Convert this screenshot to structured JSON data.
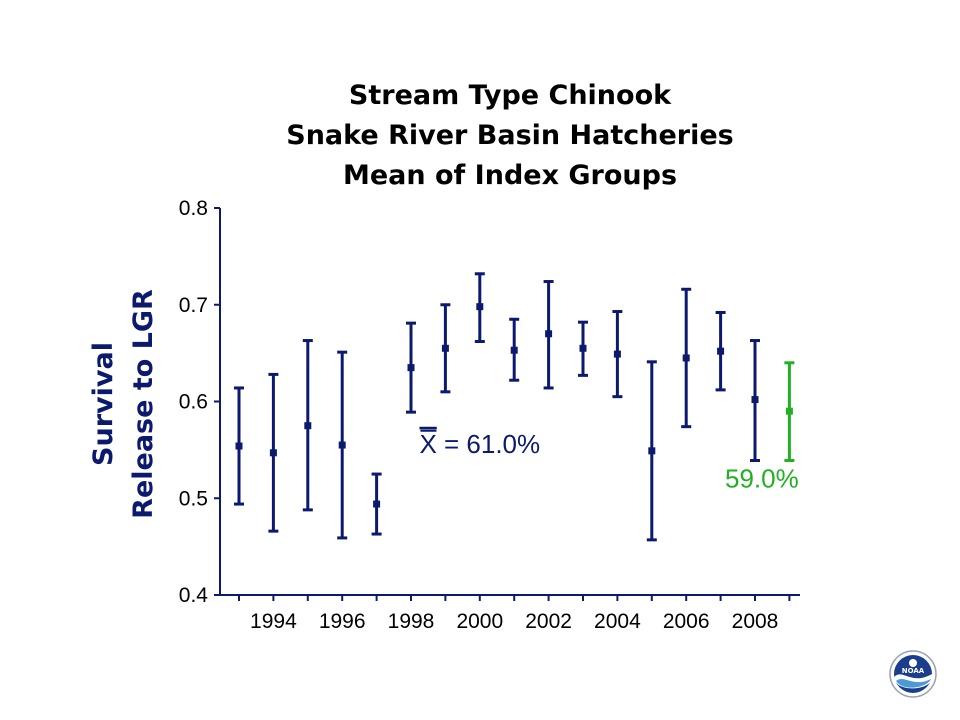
{
  "chart_data": {
    "type": "scatter",
    "title": [
      "Stream Type Chinook",
      "Snake River Basin Hatcheries",
      "Mean of Index Groups"
    ],
    "ylabel": [
      "Survival",
      "Release to LGR"
    ],
    "xlabel": "",
    "xlim": [
      1992.5,
      2009.8
    ],
    "ylim": [
      0.4,
      0.8
    ],
    "y_ticks": [
      0.4,
      0.5,
      0.6,
      0.7,
      0.8
    ],
    "y_tick_labels": [
      "0.4",
      "0.5",
      "0.6",
      "0.7",
      "0.8"
    ],
    "x_ticks": [
      1994,
      1996,
      1998,
      2000,
      2002,
      2004,
      2006,
      2008
    ],
    "x_tick_labels": [
      "1994",
      "1996",
      "1998",
      "2000",
      "2002",
      "2004",
      "2006",
      "2008"
    ],
    "grid": false,
    "series": [
      {
        "color": "#0c1a6e",
        "points": [
          {
            "x": 1993,
            "y": 0.554,
            "lo": 0.494,
            "hi": 0.614
          },
          {
            "x": 1994,
            "y": 0.547,
            "lo": 0.466,
            "hi": 0.628
          },
          {
            "x": 1995,
            "y": 0.575,
            "lo": 0.488,
            "hi": 0.663
          },
          {
            "x": 1996,
            "y": 0.555,
            "lo": 0.459,
            "hi": 0.651
          },
          {
            "x": 1997,
            "y": 0.494,
            "lo": 0.463,
            "hi": 0.525
          },
          {
            "x": 1998,
            "y": 0.635,
            "lo": 0.589,
            "hi": 0.681
          },
          {
            "x": 1999,
            "y": 0.655,
            "lo": 0.61,
            "hi": 0.7
          },
          {
            "x": 2000,
            "y": 0.698,
            "lo": 0.662,
            "hi": 0.732
          },
          {
            "x": 2001,
            "y": 0.653,
            "lo": 0.622,
            "hi": 0.685
          },
          {
            "x": 2002,
            "y": 0.67,
            "lo": 0.614,
            "hi": 0.724
          },
          {
            "x": 2003,
            "y": 0.655,
            "lo": 0.627,
            "hi": 0.682
          },
          {
            "x": 2004,
            "y": 0.649,
            "lo": 0.605,
            "hi": 0.693
          },
          {
            "x": 2005,
            "y": 0.549,
            "lo": 0.457,
            "hi": 0.641
          },
          {
            "x": 2006,
            "y": 0.645,
            "lo": 0.574,
            "hi": 0.716
          },
          {
            "x": 2007,
            "y": 0.652,
            "lo": 0.612,
            "hi": 0.692
          },
          {
            "x": 2008,
            "y": 0.602,
            "lo": 0.539,
            "hi": 0.663
          }
        ]
      },
      {
        "color": "#22b022",
        "points": [
          {
            "x": 2009,
            "y": 0.59,
            "lo": 0.539,
            "hi": 0.64
          }
        ]
      }
    ],
    "annotations": [
      {
        "symbol": "X",
        "text": " = 61.0%",
        "color": "#0c1a6e",
        "x": 2000,
        "y": 0.547
      },
      {
        "text": "59.0%",
        "color": "#22b022",
        "x": 2008.2,
        "y": 0.511
      }
    ]
  },
  "colors": {
    "axis": "#0c1a6e",
    "text": "#000000",
    "ylabel": "#0c1a6e"
  },
  "logo": {
    "icon": "noaa-logo-icon",
    "text": "NOAA"
  }
}
